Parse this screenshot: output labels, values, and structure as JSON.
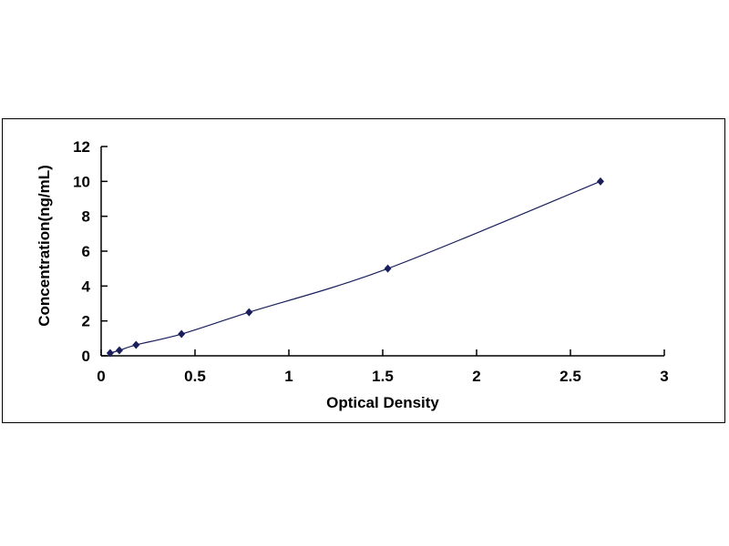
{
  "chart_data": {
    "type": "scatter",
    "title": "",
    "xlabel": "Optical Density",
    "ylabel": "Concentration(ng/mL)",
    "xlim": [
      0,
      3
    ],
    "ylim": [
      0,
      12
    ],
    "xticks": [
      "0",
      "0.5",
      "1",
      "1.5",
      "2",
      "2.5",
      "3"
    ],
    "yticks": [
      "0",
      "2",
      "4",
      "6",
      "8",
      "10",
      "12"
    ],
    "grid": false,
    "legend": "none",
    "marker": "diamond",
    "line": "smooth",
    "color": "#1a1f5c",
    "x": [
      0.048,
      0.097,
      0.186,
      0.428,
      0.788,
      1.527,
      2.66
    ],
    "y": [
      0.156,
      0.312,
      0.625,
      1.25,
      2.5,
      5,
      10
    ]
  }
}
